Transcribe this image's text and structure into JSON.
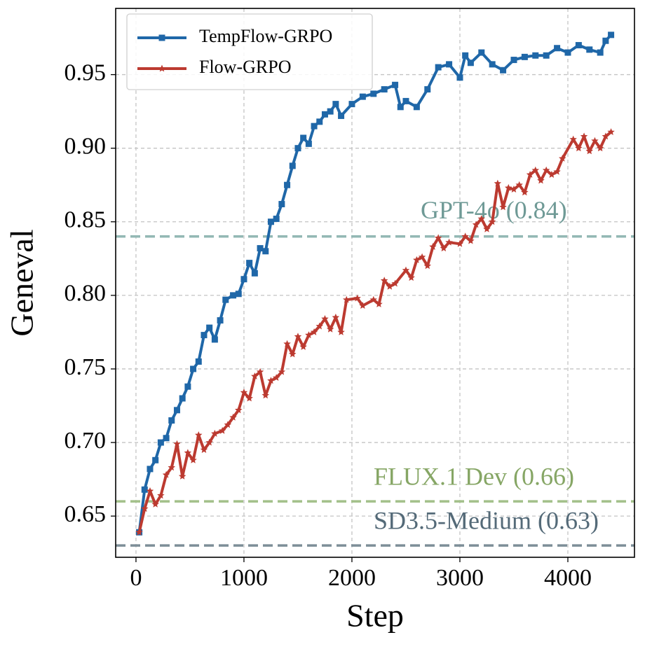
{
  "chart_data": {
    "type": "line",
    "xlabel": "Step",
    "ylabel": "Geneval",
    "xlim": [
      -188,
      4617
    ],
    "ylim": [
      0.622,
      0.995
    ],
    "xticks": [
      0,
      1000,
      2000,
      3000,
      4000
    ],
    "yticks": [
      0.65,
      {
        "value": 0.7,
        "label": "0.70"
      },
      0.75,
      {
        "value": 0.8,
        "label": "0.80"
      },
      0.85,
      {
        "value": 0.9,
        "label": "0.90"
      },
      0.95
    ],
    "grid": true,
    "legend": "upper left",
    "series": [
      {
        "name": "TempFlow-GRPO",
        "color": "#1f67a8",
        "marker": "square",
        "x": [
          30,
          80,
          130,
          180,
          230,
          280,
          330,
          380,
          430,
          480,
          530,
          580,
          630,
          680,
          730,
          780,
          830,
          900,
          950,
          1000,
          1050,
          1100,
          1150,
          1200,
          1250,
          1300,
          1350,
          1400,
          1450,
          1500,
          1550,
          1600,
          1650,
          1700,
          1750,
          1800,
          1850,
          1900,
          2000,
          2100,
          2200,
          2300,
          2400,
          2450,
          2500,
          2600,
          2700,
          2800,
          2900,
          3000,
          3050,
          3100,
          3200,
          3300,
          3400,
          3500,
          3600,
          3700,
          3800,
          3900,
          4000,
          4100,
          4200,
          4300,
          4350,
          4400
        ],
        "values": [
          0.639,
          0.668,
          0.682,
          0.688,
          0.7,
          0.703,
          0.715,
          0.722,
          0.73,
          0.738,
          0.75,
          0.755,
          0.773,
          0.778,
          0.77,
          0.783,
          0.797,
          0.8,
          0.801,
          0.811,
          0.822,
          0.815,
          0.832,
          0.83,
          0.85,
          0.852,
          0.862,
          0.875,
          0.888,
          0.9,
          0.907,
          0.903,
          0.915,
          0.918,
          0.923,
          0.925,
          0.93,
          0.922,
          0.93,
          0.935,
          0.937,
          0.94,
          0.943,
          0.928,
          0.932,
          0.928,
          0.94,
          0.955,
          0.957,
          0.948,
          0.963,
          0.958,
          0.965,
          0.957,
          0.953,
          0.96,
          0.962,
          0.963,
          0.963,
          0.968,
          0.965,
          0.97,
          0.967,
          0.965,
          0.973,
          0.977
        ]
      },
      {
        "name": "Flow-GRPO",
        "color": "#bc3a30",
        "marker": "star",
        "x": [
          30,
          80,
          130,
          180,
          230,
          280,
          330,
          380,
          430,
          480,
          530,
          580,
          630,
          680,
          730,
          800,
          850,
          900,
          950,
          1000,
          1050,
          1100,
          1150,
          1200,
          1250,
          1300,
          1350,
          1400,
          1450,
          1500,
          1550,
          1600,
          1650,
          1700,
          1750,
          1800,
          1850,
          1900,
          1950,
          2050,
          2100,
          2200,
          2250,
          2300,
          2350,
          2400,
          2500,
          2550,
          2600,
          2650,
          2700,
          2750,
          2800,
          2850,
          2900,
          3000,
          3050,
          3100,
          3150,
          3200,
          3250,
          3300,
          3350,
          3400,
          3450,
          3500,
          3550,
          3600,
          3650,
          3700,
          3750,
          3800,
          3850,
          3900,
          3950,
          4050,
          4100,
          4150,
          4200,
          4250,
          4300,
          4350,
          4400
        ],
        "values": [
          0.639,
          0.655,
          0.667,
          0.658,
          0.664,
          0.678,
          0.683,
          0.699,
          0.677,
          0.693,
          0.688,
          0.705,
          0.695,
          0.7,
          0.706,
          0.708,
          0.712,
          0.717,
          0.722,
          0.734,
          0.73,
          0.745,
          0.748,
          0.732,
          0.742,
          0.744,
          0.748,
          0.767,
          0.76,
          0.772,
          0.765,
          0.773,
          0.775,
          0.779,
          0.784,
          0.777,
          0.785,
          0.775,
          0.797,
          0.798,
          0.793,
          0.797,
          0.794,
          0.81,
          0.806,
          0.808,
          0.817,
          0.812,
          0.824,
          0.826,
          0.82,
          0.833,
          0.839,
          0.832,
          0.836,
          0.835,
          0.84,
          0.837,
          0.848,
          0.852,
          0.845,
          0.85,
          0.876,
          0.86,
          0.873,
          0.872,
          0.875,
          0.87,
          0.882,
          0.885,
          0.878,
          0.885,
          0.882,
          0.884,
          0.893,
          0.906,
          0.9,
          0.908,
          0.898,
          0.905,
          0.9,
          0.908,
          0.911
        ]
      }
    ],
    "reference_lines": [
      {
        "label": "GPT-4o (0.84)",
        "value": 0.84,
        "color": "#93b8b4",
        "text_color": "#6f9a96"
      },
      {
        "label": "FLUX.1 Dev (0.66)",
        "value": 0.66,
        "color": "#a3c08a",
        "text_color": "#86a665"
      },
      {
        "label": "SD3.5-Medium (0.63)",
        "value": 0.63,
        "color": "#7d8e98",
        "text_color": "#546a78"
      }
    ]
  }
}
